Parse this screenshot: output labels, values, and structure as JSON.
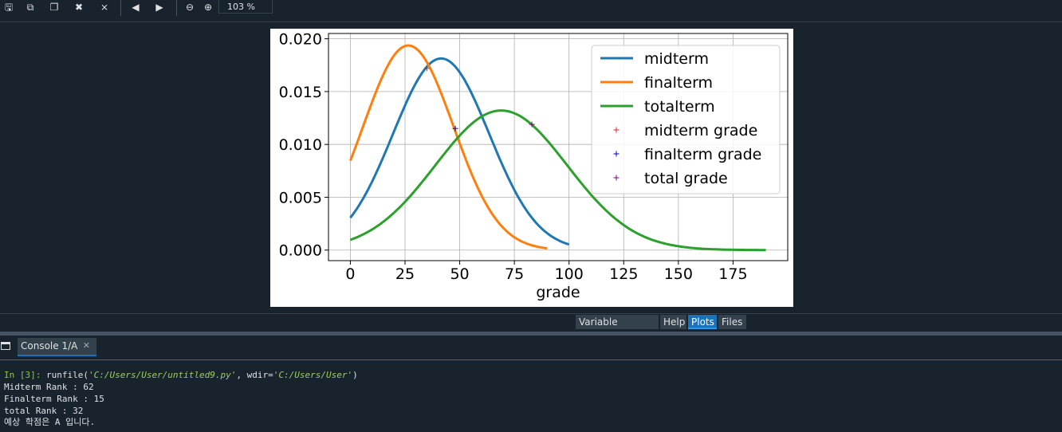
{
  "toolbar": {
    "buttons": [
      {
        "name": "save-icon",
        "glyph": "🖫"
      },
      {
        "name": "save-all-icon",
        "glyph": "⧉"
      },
      {
        "name": "copy-icon",
        "glyph": "❐"
      },
      {
        "name": "close-icon",
        "glyph": "✖"
      },
      {
        "name": "close-all-icon",
        "glyph": "⨯"
      },
      {
        "name": "previous-icon",
        "glyph": "◀"
      },
      {
        "name": "next-icon",
        "glyph": "▶"
      },
      {
        "name": "zoom-out-icon",
        "glyph": "⊖"
      },
      {
        "name": "zoom-in-icon",
        "glyph": "⊕"
      }
    ],
    "zoom_value": "103 %"
  },
  "panel_tabs": [
    {
      "label": "Variable explorer",
      "active": false
    },
    {
      "label": "Help",
      "active": false
    },
    {
      "label": "Plots",
      "active": true
    },
    {
      "label": "Files",
      "active": false
    }
  ],
  "console": {
    "tab_label": "Console 1/A",
    "close_glyph": "✕",
    "prompt": "In [3]:",
    "command_prefix": " runfile(",
    "command_arg1": "'C:/Users/User/untitled9.py'",
    "command_mid": ", wdir=",
    "command_arg2": "'C:/Users/User'",
    "command_suffix": ")",
    "output": [
      "Midterm Rank : 62",
      "Finalterm Rank : 15",
      "total Rank : 32",
      "예상 학점은 A 입니다."
    ]
  },
  "chart_data": {
    "type": "line",
    "xlabel": "grade",
    "ylabel": "",
    "xlim": [
      -10,
      200
    ],
    "ylim": [
      -0.001,
      0.0205
    ],
    "xticks": [
      0,
      25,
      50,
      75,
      100,
      125,
      150,
      175
    ],
    "yticks": [
      "0.000",
      "0.005",
      "0.010",
      "0.015",
      "0.020"
    ],
    "ytick_values": [
      0,
      0.005,
      0.01,
      0.015,
      0.02
    ],
    "grid": true,
    "legend_position": "top-right",
    "series": [
      {
        "name": "midterm",
        "color": "#1f77b4",
        "mean": 41.5,
        "std": 22,
        "x_range": [
          0,
          100
        ]
      },
      {
        "name": "finalterm",
        "color": "#ff7f0e",
        "mean": 26.5,
        "std": 20.6,
        "x_range": [
          0,
          90
        ]
      },
      {
        "name": "totalterm",
        "color": "#2ca02c",
        "mean": 69,
        "std": 30.2,
        "x_range": [
          0,
          190
        ]
      }
    ],
    "markers": [
      {
        "name": "midterm grade",
        "color": "#d62728",
        "x": 35,
        "y": 0.0172
      },
      {
        "name": "finalterm grade",
        "color": "#0000cc",
        "x": 48,
        "y": 0.0115
      },
      {
        "name": "total grade",
        "color": "#800080",
        "x": 83,
        "y": 0.0119
      }
    ]
  }
}
